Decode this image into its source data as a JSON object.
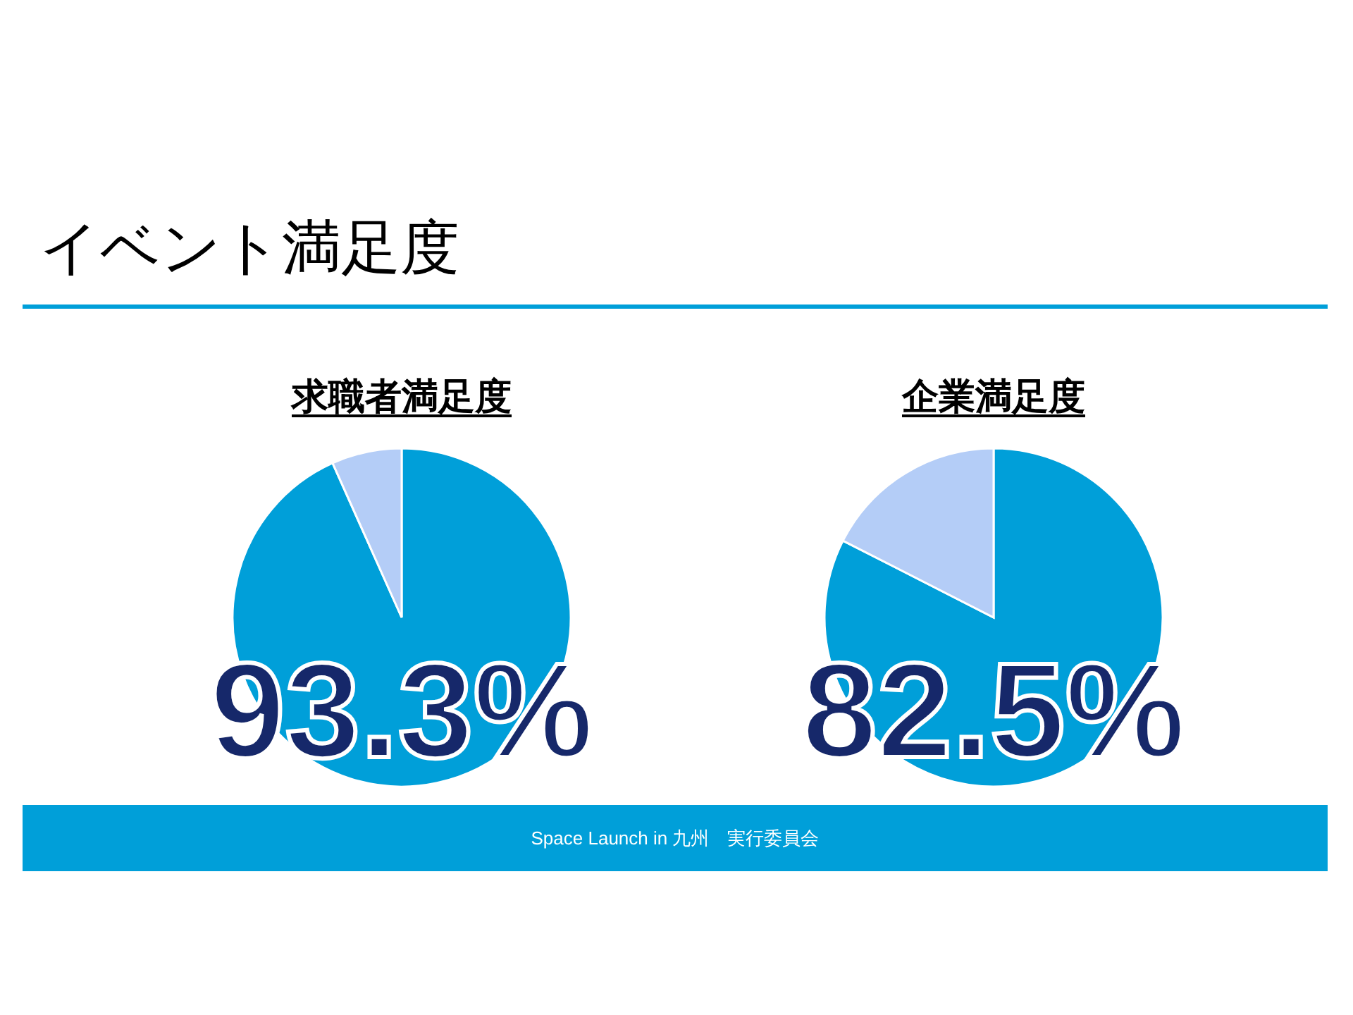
{
  "chart_data": [
    {
      "type": "pie",
      "title": "求職者満足度",
      "categories": [
        null,
        null
      ],
      "values": [
        93.3,
        6.7
      ],
      "colors": [
        "#009fd9",
        "#b4cdf7"
      ],
      "value_labels": [
        "93.3%",
        null
      ],
      "legend": false,
      "annotations": [
        "イベント満足度"
      ]
    },
    {
      "type": "pie",
      "title": "企業満足度",
      "categories": [
        null,
        null
      ],
      "values": [
        82.5,
        17.5
      ],
      "colors": [
        "#009fd9",
        "#b4cdf7"
      ],
      "value_labels": [
        "82.5%",
        null
      ],
      "legend": false,
      "annotations": [
        "Space Launch in 九州　実行委員会"
      ]
    }
  ]
}
